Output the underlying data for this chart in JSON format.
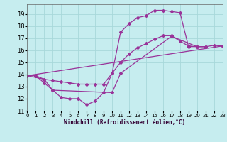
{
  "xlabel": "Windchill (Refroidissement éolien,°C)",
  "xlim": [
    0,
    23
  ],
  "ylim": [
    11,
    19.8
  ],
  "xticks": [
    0,
    1,
    2,
    3,
    4,
    5,
    6,
    7,
    8,
    9,
    10,
    11,
    12,
    13,
    14,
    15,
    16,
    17,
    18,
    19,
    20,
    21,
    22,
    23
  ],
  "yticks": [
    11,
    12,
    13,
    14,
    15,
    16,
    17,
    18,
    19
  ],
  "bg_color": "#c6edef",
  "grid_color": "#a8d8da",
  "line_color": "#993399",
  "lines": [
    {
      "x": [
        0,
        1,
        2,
        3,
        4,
        5,
        6,
        7,
        8,
        9,
        10,
        11,
        12,
        13,
        14,
        15,
        16,
        17,
        18,
        19,
        20,
        21,
        22,
        23
      ],
      "y": [
        13.9,
        13.9,
        13.3,
        12.7,
        12.1,
        12.0,
        12.0,
        11.5,
        11.8,
        12.5,
        14.1,
        17.5,
        18.2,
        18.7,
        18.85,
        19.3,
        19.3,
        19.2,
        19.1,
        16.3,
        16.3,
        16.3,
        16.4,
        16.35
      ]
    },
    {
      "x": [
        0,
        1,
        2,
        3,
        4,
        5,
        6,
        7,
        8,
        9,
        10,
        11,
        12,
        13,
        14,
        15,
        16,
        17,
        18,
        19,
        20,
        21
      ],
      "y": [
        13.9,
        13.9,
        13.6,
        13.5,
        13.4,
        13.3,
        13.2,
        13.2,
        13.2,
        13.2,
        14.1,
        15.0,
        15.7,
        16.2,
        16.55,
        16.9,
        17.2,
        17.2,
        16.75,
        16.35,
        16.3,
        16.3
      ]
    },
    {
      "x": [
        0,
        23
      ],
      "y": [
        13.9,
        16.35
      ]
    },
    {
      "x": [
        0,
        2,
        3,
        10,
        11,
        17,
        20,
        21
      ],
      "y": [
        13.9,
        13.6,
        12.7,
        12.5,
        14.1,
        17.15,
        16.3,
        16.3
      ]
    }
  ]
}
